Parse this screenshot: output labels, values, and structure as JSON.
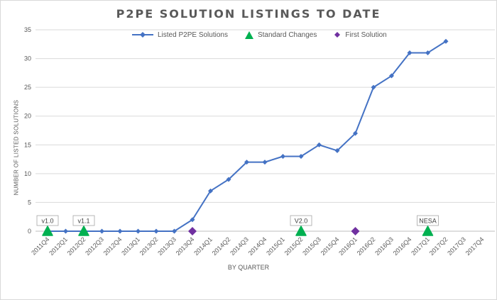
{
  "chart_data": {
    "type": "line",
    "title": "P2PE SOLUTION LISTINGS TO DATE",
    "xlabel": "BY QUARTER",
    "ylabel": "NUMBER OF LISTED SOLUTIONS",
    "ylim": [
      0,
      35
    ],
    "yticks": [
      0,
      5,
      10,
      15,
      20,
      25,
      30,
      35
    ],
    "grid": true,
    "legend_position": "top",
    "categories": [
      "2011Q4",
      "2012Q1",
      "2012Q2",
      "2012Q3",
      "2012Q4",
      "2013Q1",
      "2013Q2",
      "2013Q3",
      "2013Q4",
      "2014Q1",
      "2014Q2",
      "2014Q3",
      "2014Q4",
      "2015Q1",
      "2015Q2",
      "2015Q3",
      "2015Q4",
      "2016Q1",
      "2016Q2",
      "2016Q3",
      "2016Q4",
      "2017Q1",
      "2017Q2",
      "2017Q3",
      "2017Q4"
    ],
    "series": [
      {
        "name": "Listed P2PE Solutions",
        "color": "#4472c4",
        "marker": "diamond",
        "values": [
          0,
          0,
          0,
          0,
          0,
          0,
          0,
          0,
          2,
          7,
          9,
          12,
          12,
          13,
          13,
          15,
          14,
          17,
          25,
          27,
          31,
          31,
          33,
          null,
          null
        ]
      },
      {
        "name": "Standard Changes",
        "color": "#00b050",
        "marker": "triangle",
        "points": [
          {
            "x": "2011Q4",
            "y": 0,
            "label": "v1.0"
          },
          {
            "x": "2012Q2",
            "y": 0,
            "label": "v1.1"
          },
          {
            "x": "2015Q2",
            "y": 0,
            "label": "V2.0"
          },
          {
            "x": "2017Q1",
            "y": 0,
            "label": "NESA"
          }
        ]
      },
      {
        "name": "First Solution",
        "color": "#7030a0",
        "marker": "diamond",
        "points": [
          {
            "x": "2013Q4",
            "y": 0
          },
          {
            "x": "2016Q1",
            "y": 0
          }
        ]
      }
    ]
  }
}
